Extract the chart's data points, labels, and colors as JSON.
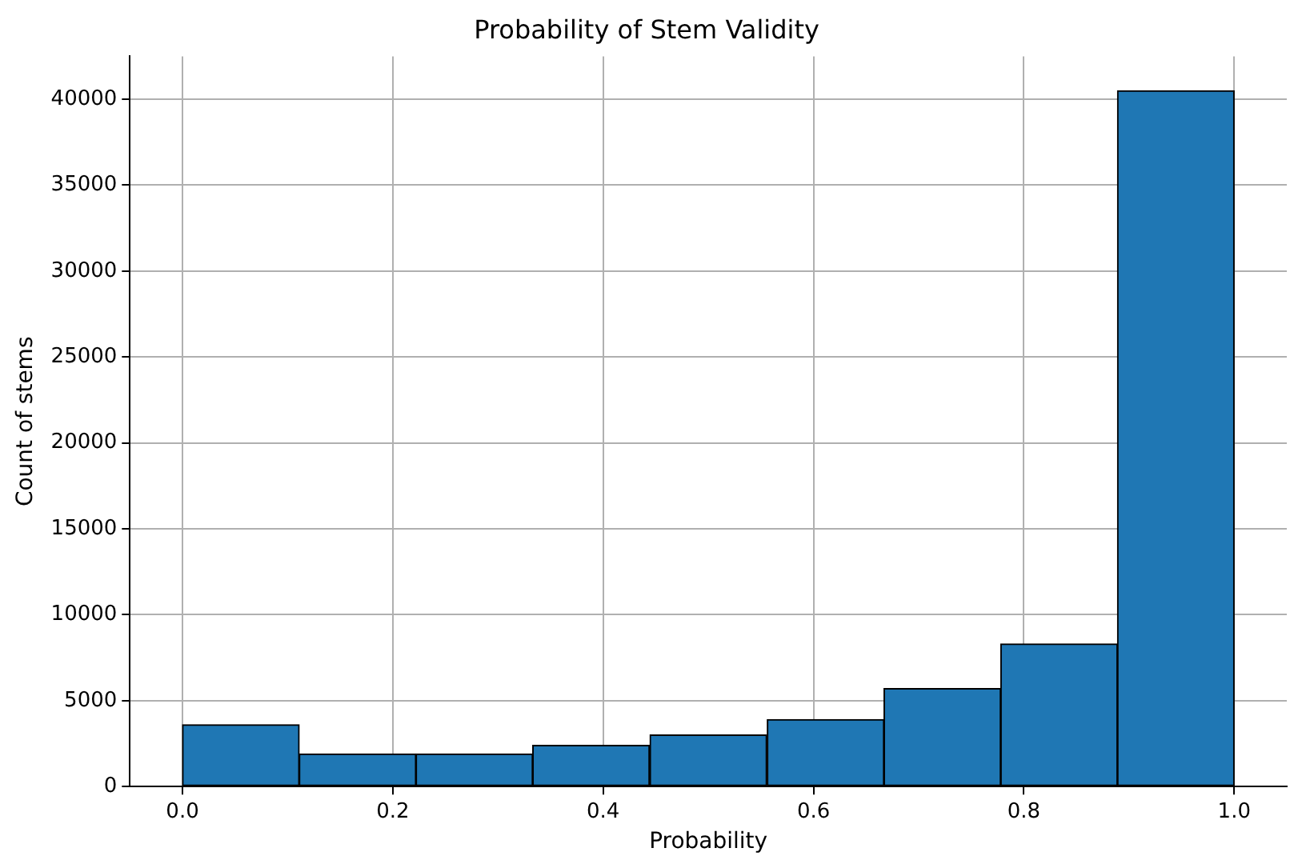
{
  "chart_data": {
    "type": "histogram",
    "title": "Probability of Stem Validity",
    "xlabel": "Probability",
    "ylabel": "Count of stems",
    "bins": [
      0,
      0.111,
      0.222,
      0.333,
      0.444,
      0.556,
      0.667,
      0.778,
      0.889,
      1
    ],
    "values": [
      3600,
      1900,
      1900,
      2400,
      3000,
      3900,
      5700,
      8300,
      40500
    ],
    "color": "#1f77b4",
    "xlim": [
      -0.05,
      1.05
    ],
    "xticks": [
      {
        "value": 0,
        "label": "0.0"
      },
      0.2,
      0.4,
      0.6,
      0.8,
      {
        "value": 1,
        "label": "1.0"
      }
    ],
    "ylim": [
      0,
      42500
    ],
    "yticks": [
      0,
      5000,
      10000,
      15000,
      20000,
      25000,
      30000,
      35000,
      40000
    ],
    "grid": true,
    "legend": false
  }
}
